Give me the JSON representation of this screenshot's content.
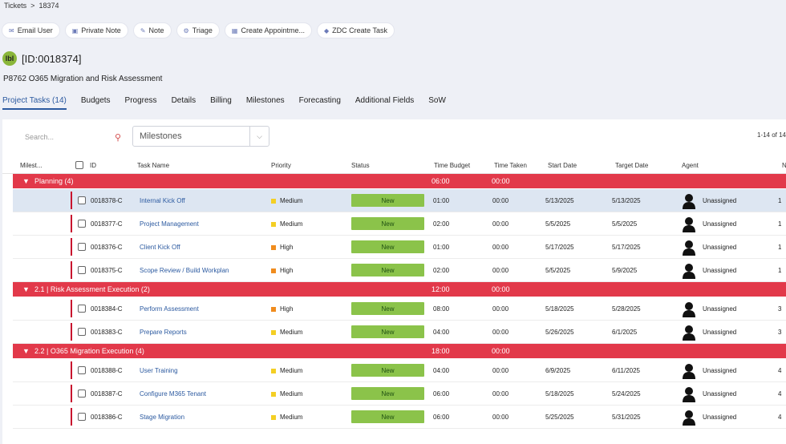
{
  "breadcrumb": {
    "root": "Tickets",
    "sep": ">",
    "current": "18374"
  },
  "actions": [
    {
      "label": "Email User",
      "icon": "✉"
    },
    {
      "label": "Private Note",
      "icon": "▣"
    },
    {
      "label": "Note",
      "icon": "✎"
    },
    {
      "label": "Triage",
      "icon": "⚙"
    },
    {
      "label": "Create Appointme...",
      "icon": "▦"
    },
    {
      "label": "ZDC Create Task",
      "icon": "◆"
    }
  ],
  "ticket": {
    "logo_text": "lbl",
    "id_label": "[ID:0018374]",
    "subject": "P8762 O365 Migration and Risk Assessment"
  },
  "tabs": [
    "Project Tasks (14)",
    "Budgets",
    "Progress",
    "Details",
    "Billing",
    "Milestones",
    "Forecasting",
    "Additional Fields",
    "SoW"
  ],
  "toolbar": {
    "search_placeholder": "Search...",
    "milestones_placeholder": "Milestones",
    "page_count": "1-14 of 14"
  },
  "columns": {
    "milestone": "Milest...",
    "id": "ID",
    "task": "Task Name",
    "priority": "Priority",
    "status": "Status",
    "time_budget": "Time Budget",
    "time_taken": "Time Taken",
    "start": "Start Date",
    "target": "Target Date",
    "agent": "Agent",
    "more": "N"
  },
  "colors": {
    "high": "#f08c1e",
    "medium": "#f4cf24",
    "group": "#e2394a",
    "status_new": "#8bc34a"
  },
  "groups": [
    {
      "title": "Planning (4)",
      "budget": "06:00",
      "taken": "00:00",
      "rows": [
        {
          "id": "0018378-C",
          "task": "Internal Kick Off",
          "priority": "Medium",
          "status": "New",
          "time_budget": "01:00",
          "time_taken": "00:00",
          "start": "5/13/2025",
          "target": "5/13/2025",
          "agent": "Unassigned",
          "extra": "1"
        },
        {
          "id": "0018377-C",
          "task": "Project Management",
          "priority": "Medium",
          "status": "New",
          "time_budget": "02:00",
          "time_taken": "00:00",
          "start": "5/5/2025",
          "target": "5/5/2025",
          "agent": "Unassigned",
          "extra": "1"
        },
        {
          "id": "0018376-C",
          "task": "Client Kick Off",
          "priority": "High",
          "status": "New",
          "time_budget": "01:00",
          "time_taken": "00:00",
          "start": "5/17/2025",
          "target": "5/17/2025",
          "agent": "Unassigned",
          "extra": "1"
        },
        {
          "id": "0018375-C",
          "task": "Scope Review / Build Workplan",
          "priority": "High",
          "status": "New",
          "time_budget": "02:00",
          "time_taken": "00:00",
          "start": "5/5/2025",
          "target": "5/9/2025",
          "agent": "Unassigned",
          "extra": "1"
        }
      ]
    },
    {
      "title": "2.1 | Risk Assessment Execution (2)",
      "budget": "12:00",
      "taken": "00:00",
      "rows": [
        {
          "id": "0018384-C",
          "task": "Perform Assessment",
          "priority": "High",
          "status": "New",
          "time_budget": "08:00",
          "time_taken": "00:00",
          "start": "5/18/2025",
          "target": "5/28/2025",
          "agent": "Unassigned",
          "extra": "3"
        },
        {
          "id": "0018383-C",
          "task": "Prepare Reports",
          "priority": "Medium",
          "status": "New",
          "time_budget": "04:00",
          "time_taken": "00:00",
          "start": "5/26/2025",
          "target": "6/1/2025",
          "agent": "Unassigned",
          "extra": "3"
        }
      ]
    },
    {
      "title": "2.2 | O365 Migration Execution (4)",
      "budget": "18:00",
      "taken": "00:00",
      "rows": [
        {
          "id": "0018388-C",
          "task": "User Training",
          "priority": "Medium",
          "status": "New",
          "time_budget": "04:00",
          "time_taken": "00:00",
          "start": "6/9/2025",
          "target": "6/11/2025",
          "agent": "Unassigned",
          "extra": "4"
        },
        {
          "id": "0018387-C",
          "task": "Configure M365 Tenant",
          "priority": "Medium",
          "status": "New",
          "time_budget": "06:00",
          "time_taken": "00:00",
          "start": "5/18/2025",
          "target": "5/24/2025",
          "agent": "Unassigned",
          "extra": "4"
        },
        {
          "id": "0018386-C",
          "task": "Stage Migration",
          "priority": "Medium",
          "status": "New",
          "time_budget": "06:00",
          "time_taken": "00:00",
          "start": "5/25/2025",
          "target": "5/31/2025",
          "agent": "Unassigned",
          "extra": "4"
        }
      ]
    }
  ]
}
